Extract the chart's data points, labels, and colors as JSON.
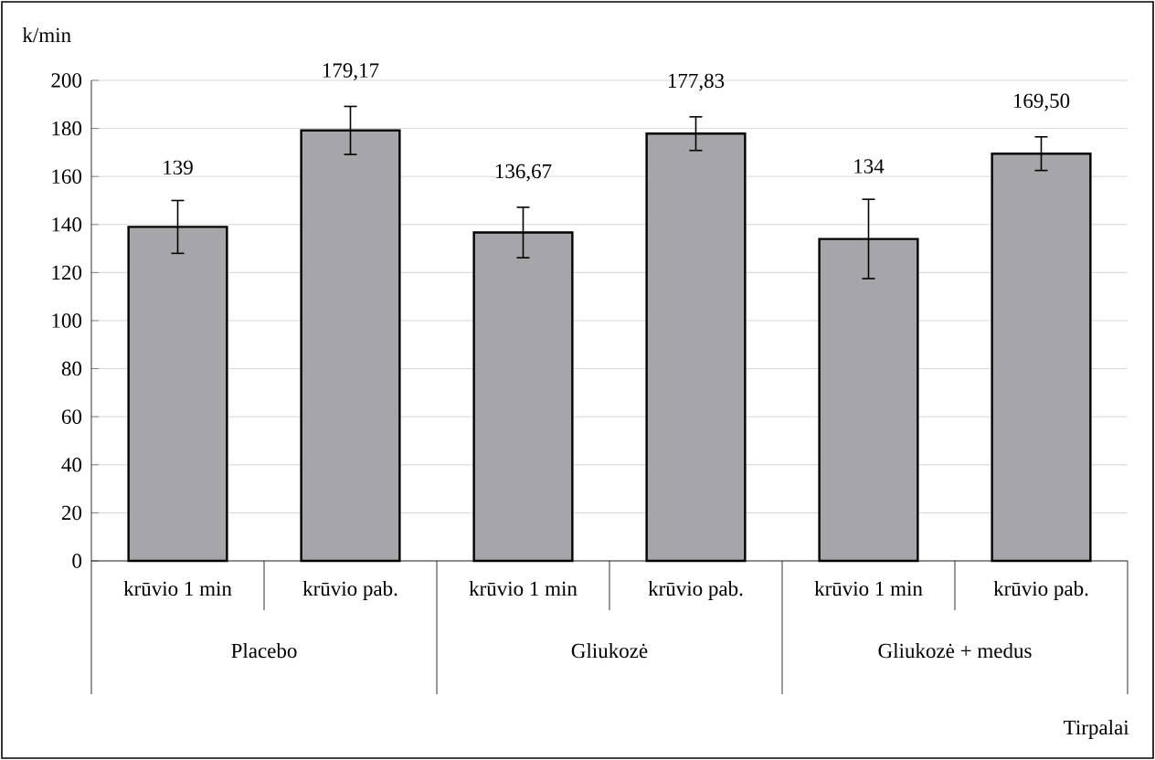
{
  "chart_data": {
    "type": "bar",
    "ylabel": "k/min",
    "categories": [
      "krūvio 1 min",
      "krūvio pab.",
      "krūvio 1 min",
      "krūvio pab.",
      "krūvio 1 min",
      "krūvio pab."
    ],
    "values": [
      139,
      179.17,
      136.67,
      177.83,
      134,
      169.5
    ],
    "errors": [
      11,
      10,
      10.5,
      7,
      16.5,
      7
    ],
    "value_labels": [
      "139",
      "179,17",
      "136,67",
      "177,83",
      "134",
      "169,50"
    ],
    "color": "#a6a6aa",
    "annotations": [
      "Placebo",
      "Gliukozė",
      "Gliukozė + medus",
      "Tirpalai"
    ],
    "ylim": [
      0,
      200
    ],
    "yticks": [
      0,
      20,
      40,
      60,
      80,
      100,
      120,
      140,
      160,
      180,
      200
    ],
    "grid": "y"
  }
}
